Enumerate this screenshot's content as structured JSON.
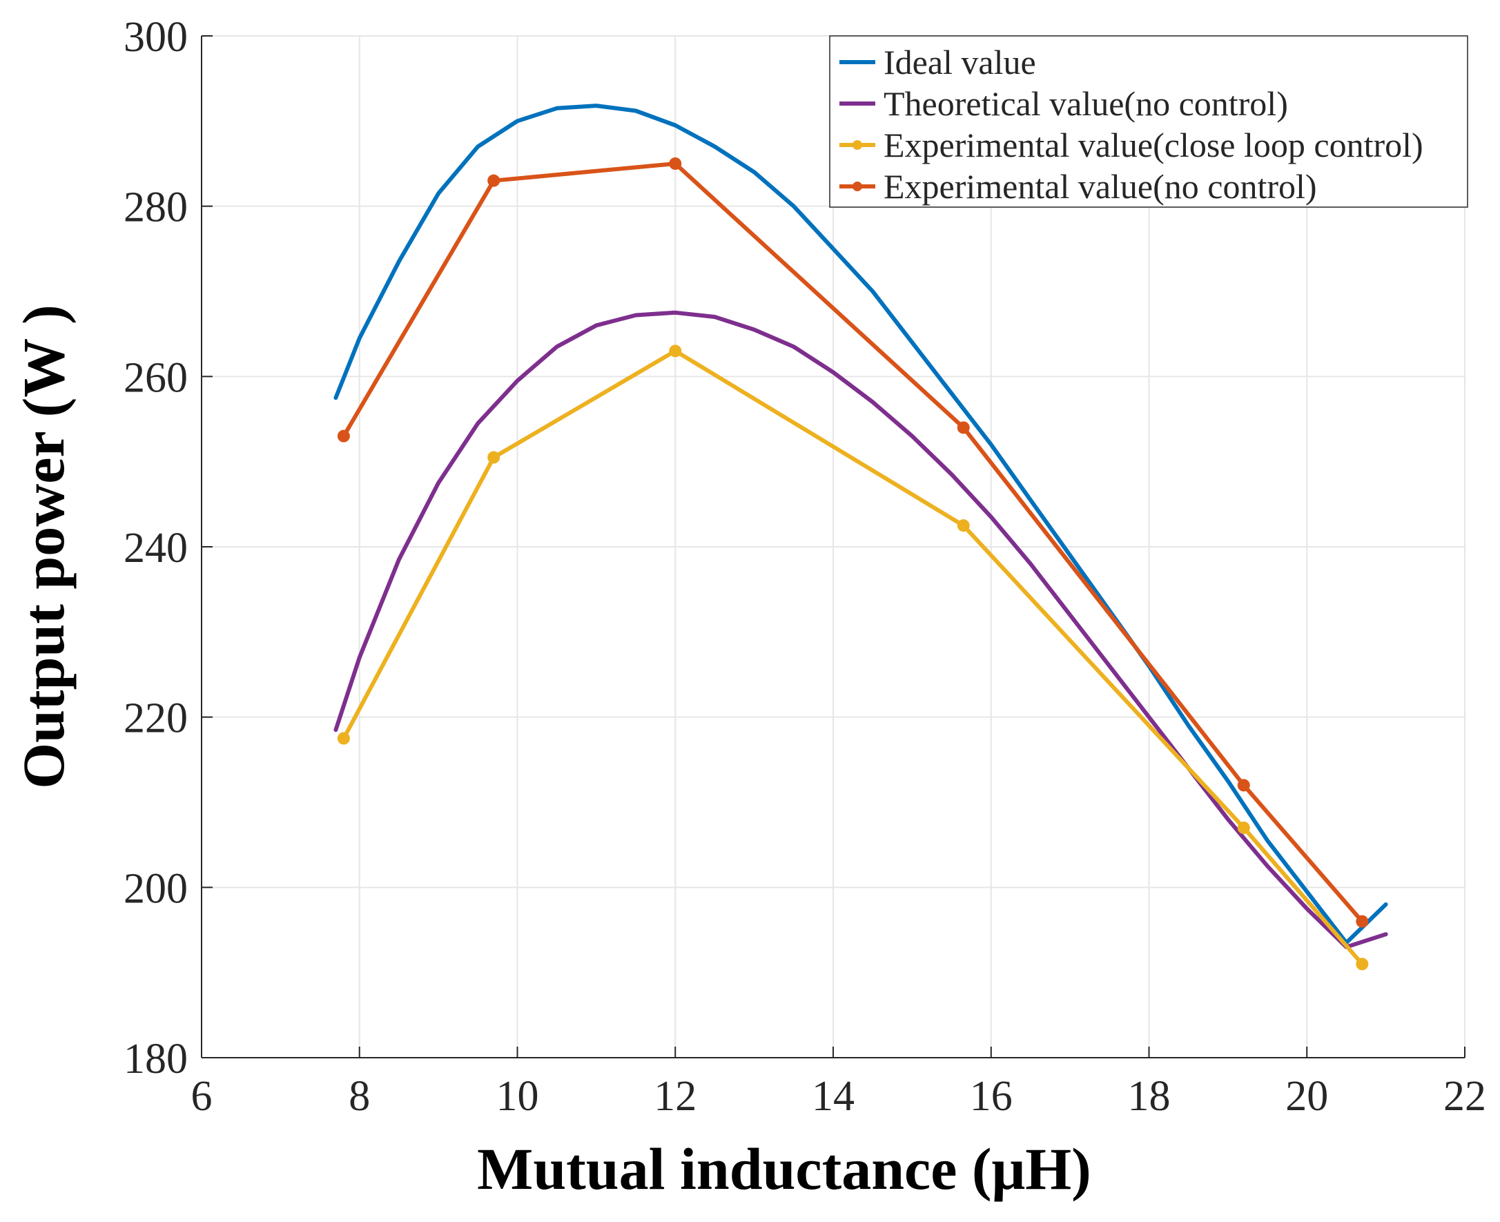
{
  "chart_data": {
    "type": "line",
    "title": "",
    "xlabel": "Mutual inductance (μH)",
    "ylabel": "Output power (W )",
    "xlim": [
      6,
      22
    ],
    "ylim": [
      180,
      300
    ],
    "xticks": [
      6,
      8,
      10,
      12,
      14,
      16,
      18,
      20,
      22
    ],
    "yticks": [
      180,
      200,
      220,
      240,
      260,
      280,
      300
    ],
    "grid": true,
    "legend_position": "top-right",
    "series": [
      {
        "name": "Ideal value",
        "color": "#0072BD",
        "marker": "none",
        "x": [
          7.7,
          8.0,
          8.5,
          9.0,
          9.5,
          10.0,
          10.5,
          11.0,
          11.5,
          12.0,
          12.5,
          13.0,
          13.5,
          14.0,
          14.5,
          15.0,
          15.5,
          16.0,
          16.5,
          17.0,
          17.5,
          18.0,
          18.5,
          19.0,
          19.5,
          20.0,
          20.5,
          21.0
        ],
        "y": [
          257.5,
          264.5,
          273.5,
          281.5,
          287.0,
          290.0,
          291.5,
          291.8,
          291.2,
          289.5,
          287.0,
          284.0,
          280.0,
          275.0,
          270.0,
          264.0,
          258.0,
          252.0,
          245.5,
          239.0,
          232.5,
          226.0,
          219.0,
          212.5,
          205.5,
          199.5,
          193.5,
          198.0
        ]
      },
      {
        "name": "Theoretical value(no control)",
        "color": "#7E2F8E",
        "marker": "none",
        "x": [
          7.7,
          8.0,
          8.5,
          9.0,
          9.5,
          10.0,
          10.5,
          11.0,
          11.5,
          12.0,
          12.5,
          13.0,
          13.5,
          14.0,
          14.5,
          15.0,
          15.5,
          16.0,
          16.5,
          17.0,
          17.5,
          18.0,
          18.5,
          19.0,
          19.5,
          20.0,
          20.5,
          21.0
        ],
        "y": [
          218.5,
          227.0,
          238.5,
          247.5,
          254.5,
          259.5,
          263.5,
          266.0,
          267.2,
          267.5,
          267.0,
          265.5,
          263.5,
          260.5,
          257.0,
          253.0,
          248.5,
          243.5,
          238.0,
          232.0,
          226.0,
          220.0,
          214.0,
          208.0,
          202.5,
          197.5,
          193.0,
          194.5
        ]
      },
      {
        "name": "Experimental value(close loop control)",
        "color": "#EDB120",
        "marker": "dot",
        "x": [
          7.8,
          9.7,
          12.0,
          15.65,
          19.2,
          20.7
        ],
        "y": [
          217.5,
          250.5,
          263.0,
          242.5,
          207.0,
          191.0
        ]
      },
      {
        "name": "Experimental value(no control)",
        "color": "#D95319",
        "marker": "dot",
        "x": [
          7.8,
          9.7,
          12.0,
          15.65,
          19.2,
          20.7
        ],
        "y": [
          253.0,
          283.0,
          285.0,
          254.0,
          212.0,
          196.0
        ]
      }
    ]
  }
}
